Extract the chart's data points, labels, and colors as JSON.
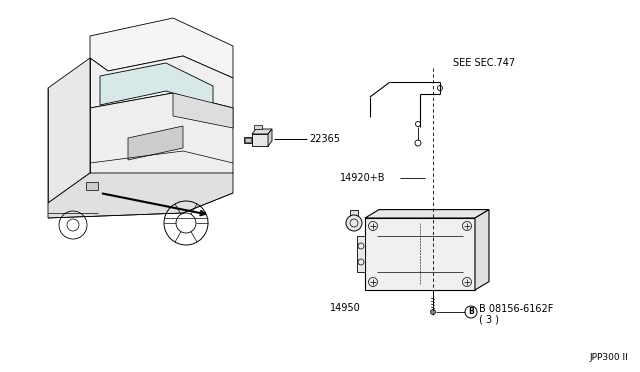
{
  "background_color": "#ffffff",
  "diagram_id": "JPP300 II",
  "labels": {
    "see_sec": "SEE SEC.747",
    "part_22365": "22365",
    "part_14920": "14920+B",
    "part_14950": "14950",
    "part_bolt_1": "B 08156-6162F",
    "part_bolt_2": "( 3 )"
  },
  "line_color": "#000000",
  "text_color": "#000000",
  "font_size_label": 7.0,
  "font_size_id": 6.5
}
